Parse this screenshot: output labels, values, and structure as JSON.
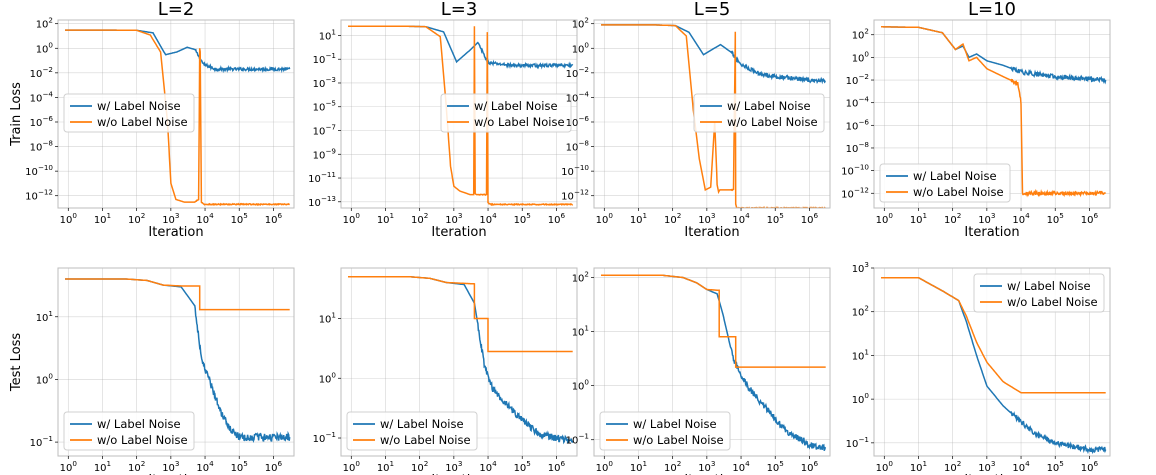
{
  "chart_data": [
    {
      "panel": "L=2 train",
      "type": "line",
      "title": "L=2",
      "ylabel": "Train Loss",
      "xlabel": "Iteration",
      "xscale": "log",
      "yscale": "log",
      "xlim": [
        0.5,
        4000000
      ],
      "ylim": [
        1e-13,
        200
      ],
      "yticks": [
        {
          "v": 100,
          "label": "10^2"
        },
        {
          "v": 1,
          "label": "10^0"
        },
        {
          "v": 0.01,
          "label": "10^-2"
        },
        {
          "v": 0.0001,
          "label": "10^-4"
        },
        {
          "v": 1e-06,
          "label": "10^-6"
        },
        {
          "v": 1e-08,
          "label": "10^-8"
        },
        {
          "v": 1e-10,
          "label": "10^-10"
        },
        {
          "v": 1e-12,
          "label": "10^-12"
        }
      ],
      "legend": {
        "position": "center-left"
      },
      "series": [
        {
          "name": "w/  Label Noise",
          "color": "#1f77b4",
          "noise": 0.12,
          "x": [
            0.8,
            20,
            100,
            300,
            700,
            1500,
            3000,
            5000,
            9000,
            20000,
            100000,
            3000000
          ],
          "y": [
            30,
            30,
            29,
            18,
            0.3,
            0.5,
            1.2,
            0.8,
            0.05,
            0.02,
            0.02,
            0.02
          ]
        },
        {
          "name": "w/o Label Noise",
          "color": "#ff7f0e",
          "noise": 0.04,
          "x": [
            0.8,
            20,
            100,
            250,
            500,
            800,
            1000,
            1400,
            2500,
            5000,
            6500,
            7000,
            7200,
            7800,
            9000,
            20000,
            3000000
          ],
          "y": [
            30,
            30,
            29,
            12,
            0.5,
            1e-06,
            1e-11,
            5e-13,
            3e-13,
            3e-13,
            5e-13,
            1,
            0.5,
            3e-13,
            2e-13,
            2e-13,
            2e-13
          ]
        }
      ]
    },
    {
      "panel": "L=3 train",
      "type": "line",
      "title": "L=3",
      "ylabel": "",
      "xlabel": "Iteration",
      "xscale": "log",
      "yscale": "log",
      "xlim": [
        0.5,
        4000000
      ],
      "ylim": [
        3e-14,
        200
      ],
      "yticks": [
        {
          "v": 10,
          "label": "10^1"
        },
        {
          "v": 0.1,
          "label": "10^-1"
        },
        {
          "v": 0.001,
          "label": "10^-3"
        },
        {
          "v": 1e-05,
          "label": "10^-5"
        },
        {
          "v": 1e-07,
          "label": "10^-7"
        },
        {
          "v": 1e-09,
          "label": "10^-9"
        },
        {
          "v": 1e-11,
          "label": "10^-11"
        },
        {
          "v": 1e-13,
          "label": "10^-13"
        }
      ],
      "legend": {
        "position": "center-right"
      },
      "series": [
        {
          "name": "w/  Label Noise",
          "color": "#1f77b4",
          "noise": 0.12,
          "x": [
            0.8,
            30,
            150,
            500,
            1200,
            3000,
            5000,
            10000,
            50000,
            3000000
          ],
          "y": [
            60,
            60,
            55,
            20,
            0.06,
            0.6,
            2.5,
            0.05,
            0.03,
            0.03
          ]
        },
        {
          "name": "w/o Label Noise",
          "color": "#ff7f0e",
          "noise": 0.04,
          "x": [
            0.8,
            30,
            150,
            400,
            600,
            800,
            1000,
            1500,
            3000,
            3800,
            4000,
            4200,
            4600,
            8000,
            9000,
            9500,
            10000,
            12000,
            3000000
          ],
          "y": [
            60,
            60,
            55,
            8,
            1e-05,
            1e-10,
            2e-12,
            8e-13,
            4e-13,
            4e-13,
            60,
            5e-13,
            4e-13,
            4e-13,
            4e-13,
            20,
            8e-14,
            6e-14,
            6e-14
          ]
        }
      ]
    },
    {
      "panel": "L=5 train",
      "type": "line",
      "title": "L=5",
      "ylabel": "",
      "xlabel": "Iteration",
      "xscale": "log",
      "yscale": "log",
      "xlim": [
        0.5,
        4000000
      ],
      "ylim": [
        1e-13,
        200
      ],
      "yticks": [
        {
          "v": 100,
          "label": "10^2"
        },
        {
          "v": 1,
          "label": "10^0"
        },
        {
          "v": 0.01,
          "label": "10^-2"
        },
        {
          "v": 0.0001,
          "label": "10^-4"
        },
        {
          "v": 1e-06,
          "label": "10^-6"
        },
        {
          "v": 1e-08,
          "label": "10^-8"
        },
        {
          "v": 1e-10,
          "label": "10^-10"
        },
        {
          "v": 1e-12,
          "label": "10^-12"
        }
      ],
      "legend": {
        "position": "center-right"
      },
      "series": [
        {
          "name": "w/  Label Noise",
          "color": "#1f77b4",
          "noise": 0.18,
          "x": [
            0.8,
            30,
            120,
            300,
            800,
            2500,
            5000,
            10000,
            30000,
            100000,
            3000000
          ],
          "y": [
            80,
            80,
            70,
            20,
            0.3,
            2,
            0.5,
            0.05,
            0.01,
            0.005,
            0.002
          ]
        },
        {
          "name": "w/o Label Noise",
          "color": "#ff7f0e",
          "noise": 0.04,
          "x": [
            0.8,
            30,
            120,
            250,
            400,
            600,
            900,
            1300,
            1700,
            2000,
            2200,
            2400,
            3000,
            6000,
            6800,
            7000,
            7400,
            8000,
            3000000
          ],
          "y": [
            80,
            80,
            70,
            10,
            1e-05,
            1e-09,
            3e-12,
            5e-12,
            1e-06,
            8e-12,
            2e-12,
            3e-12,
            3e-12,
            3e-12,
            20,
            2e-13,
            1e-13,
            1e-13,
            1e-13
          ]
        }
      ]
    },
    {
      "panel": "L=10 train",
      "type": "line",
      "title": "L=10",
      "ylabel": "",
      "xlabel": "Iteration",
      "xscale": "log",
      "yscale": "log",
      "xlim": [
        0.5,
        4000000
      ],
      "ylim": [
        5e-14,
        2000
      ],
      "yticks": [
        {
          "v": 100,
          "label": "10^2"
        },
        {
          "v": 1,
          "label": "10^0"
        },
        {
          "v": 0.01,
          "label": "10^-2"
        },
        {
          "v": 0.0001,
          "label": "10^-4"
        },
        {
          "v": 1e-06,
          "label": "10^-6"
        },
        {
          "v": 1e-08,
          "label": "10^-8"
        },
        {
          "v": 1e-10,
          "label": "10^-10"
        },
        {
          "v": 1e-12,
          "label": "10^-12"
        }
      ],
      "legend": {
        "position": "lower-left"
      },
      "series": [
        {
          "name": "w/  Label Noise",
          "color": "#1f77b4",
          "noise": 0.2,
          "x": [
            0.8,
            10,
            50,
            120,
            200,
            300,
            500,
            1000,
            3000,
            10000,
            100000,
            3000000
          ],
          "y": [
            500,
            450,
            150,
            5,
            10,
            1,
            2,
            0.5,
            0.2,
            0.05,
            0.02,
            0.01
          ]
        },
        {
          "name": "w/o Label Noise",
          "color": "#ff7f0e",
          "noise": 0.15,
          "x": [
            0.8,
            10,
            50,
            120,
            200,
            300,
            500,
            1000,
            3000,
            8000,
            9000,
            10000,
            11000,
            12000,
            3000000
          ],
          "y": [
            500,
            450,
            150,
            5,
            15,
            0.5,
            1,
            0.1,
            0.02,
            0.005,
            0.001,
            0.0001,
            1e-12,
            1e-12,
            1e-12
          ]
        }
      ]
    },
    {
      "panel": "L=2 test",
      "type": "line",
      "title": "",
      "ylabel": "Test Loss",
      "xlabel": "Iteration",
      "xscale": "log",
      "yscale": "log",
      "xlim": [
        0.5,
        4000000
      ],
      "ylim": [
        0.06,
        60
      ],
      "yticks": [
        {
          "v": 10,
          "label": "10^1"
        },
        {
          "v": 1,
          "label": "10^0"
        },
        {
          "v": 0.1,
          "label": "10^-1"
        }
      ],
      "legend": {
        "position": "lower-left"
      },
      "series": [
        {
          "name": "w/  Label Noise",
          "color": "#1f77b4",
          "noise": 0.06,
          "x": [
            0.8,
            50,
            200,
            600,
            2000,
            5000,
            8000,
            15000,
            30000,
            60000,
            100000,
            200000,
            3000000
          ],
          "y": [
            40,
            40,
            38,
            32,
            30,
            15,
            2,
            0.8,
            0.3,
            0.15,
            0.12,
            0.12,
            0.12
          ]
        },
        {
          "name": "w/o Label Noise",
          "color": "#ff7f0e",
          "noise": 0,
          "x": [
            0.8,
            50,
            200,
            600,
            2000,
            6999,
            7000,
            3000000
          ],
          "y": [
            40,
            40,
            38,
            32,
            31,
            31,
            13,
            13
          ]
        }
      ]
    },
    {
      "panel": "L=3 test",
      "type": "line",
      "title": "",
      "ylabel": "",
      "xlabel": "Iteration",
      "xscale": "log",
      "yscale": "log",
      "xlim": [
        0.5,
        4000000
      ],
      "ylim": [
        0.05,
        70
      ],
      "yticks": [
        {
          "v": 10,
          "label": "10^1"
        },
        {
          "v": 1,
          "label": "10^0"
        },
        {
          "v": 0.1,
          "label": "10^-1"
        }
      ],
      "legend": {
        "position": "lower-left"
      },
      "series": [
        {
          "name": "w/  Label Noise",
          "color": "#1f77b4",
          "noise": 0.06,
          "x": [
            0.8,
            50,
            200,
            600,
            2000,
            4000,
            8000,
            15000,
            30000,
            100000,
            300000,
            1000000,
            3000000
          ],
          "y": [
            50,
            50,
            47,
            40,
            37,
            18,
            1.5,
            0.6,
            0.4,
            0.2,
            0.12,
            0.1,
            0.09
          ]
        },
        {
          "name": "w/o Label Noise",
          "color": "#ff7f0e",
          "noise": 0,
          "x": [
            0.8,
            50,
            200,
            600,
            3999,
            4000,
            9999,
            10000,
            3000000
          ],
          "y": [
            50,
            50,
            47,
            40,
            38,
            10,
            10,
            2.8,
            2.8
          ]
        }
      ]
    },
    {
      "panel": "L=5 test",
      "type": "line",
      "title": "",
      "ylabel": "",
      "xlabel": "Iteration",
      "xscale": "log",
      "yscale": "log",
      "xlim": [
        0.5,
        4000000
      ],
      "ylim": [
        0.05,
        150
      ],
      "yticks": [
        {
          "v": 100,
          "label": "10^2"
        },
        {
          "v": 10,
          "label": "10^1"
        },
        {
          "v": 1,
          "label": "10^0"
        },
        {
          "v": 0.1,
          "label": "10^-1"
        }
      ],
      "legend": {
        "position": "lower-left"
      },
      "series": [
        {
          "name": "w/  Label Noise",
          "color": "#1f77b4",
          "noise": 0.06,
          "x": [
            0.8,
            50,
            200,
            500,
            1000,
            2000,
            3000,
            6000,
            15000,
            50000,
            200000,
            1000000,
            3000000
          ],
          "y": [
            110,
            110,
            100,
            80,
            60,
            50,
            20,
            3,
            1,
            0.4,
            0.15,
            0.08,
            0.07
          ]
        },
        {
          "name": "w/o Label Noise",
          "color": "#ff7f0e",
          "noise": 0,
          "x": [
            0.8,
            50,
            200,
            500,
            1000,
            2299,
            2300,
            6999,
            7000,
            3000000
          ],
          "y": [
            110,
            110,
            100,
            80,
            60,
            58,
            8,
            8,
            2.2,
            2.2
          ]
        }
      ]
    },
    {
      "panel": "L=10 test",
      "type": "line",
      "title": "",
      "ylabel": "",
      "xlabel": "Iteration",
      "xscale": "log",
      "yscale": "log",
      "xlim": [
        0.5,
        4000000
      ],
      "ylim": [
        0.05,
        1000
      ],
      "yticks": [
        {
          "v": 1000,
          "label": "10^3"
        },
        {
          "v": 100,
          "label": "10^2"
        },
        {
          "v": 10,
          "label": "10^1"
        },
        {
          "v": 1,
          "label": "10^0"
        },
        {
          "v": 0.1,
          "label": "10^-1"
        }
      ],
      "legend": {
        "position": "upper-right"
      },
      "series": [
        {
          "name": "w/  Label Noise",
          "color": "#1f77b4",
          "noise": 0.06,
          "x": [
            0.8,
            10,
            50,
            150,
            250,
            500,
            1000,
            3000,
            10000,
            30000,
            100000,
            1000000,
            3000000
          ],
          "y": [
            600,
            600,
            300,
            180,
            60,
            10,
            2,
            0.7,
            0.3,
            0.15,
            0.1,
            0.07,
            0.07
          ]
        },
        {
          "name": "w/o Label Noise",
          "color": "#ff7f0e",
          "noise": 0,
          "x": [
            0.8,
            10,
            50,
            150,
            250,
            500,
            1000,
            3000,
            10000,
            3000000
          ],
          "y": [
            600,
            600,
            300,
            180,
            80,
            20,
            7,
            2.5,
            1.4,
            1.4
          ]
        }
      ]
    }
  ],
  "xticks": [
    {
      "v": 1,
      "label": "10^0"
    },
    {
      "v": 10,
      "label": "10^1"
    },
    {
      "v": 100,
      "label": "10^2"
    },
    {
      "v": 1000,
      "label": "10^3"
    },
    {
      "v": 10000,
      "label": "10^4"
    },
    {
      "v": 100000,
      "label": "10^5"
    },
    {
      "v": 1000000,
      "label": "10^6"
    }
  ]
}
